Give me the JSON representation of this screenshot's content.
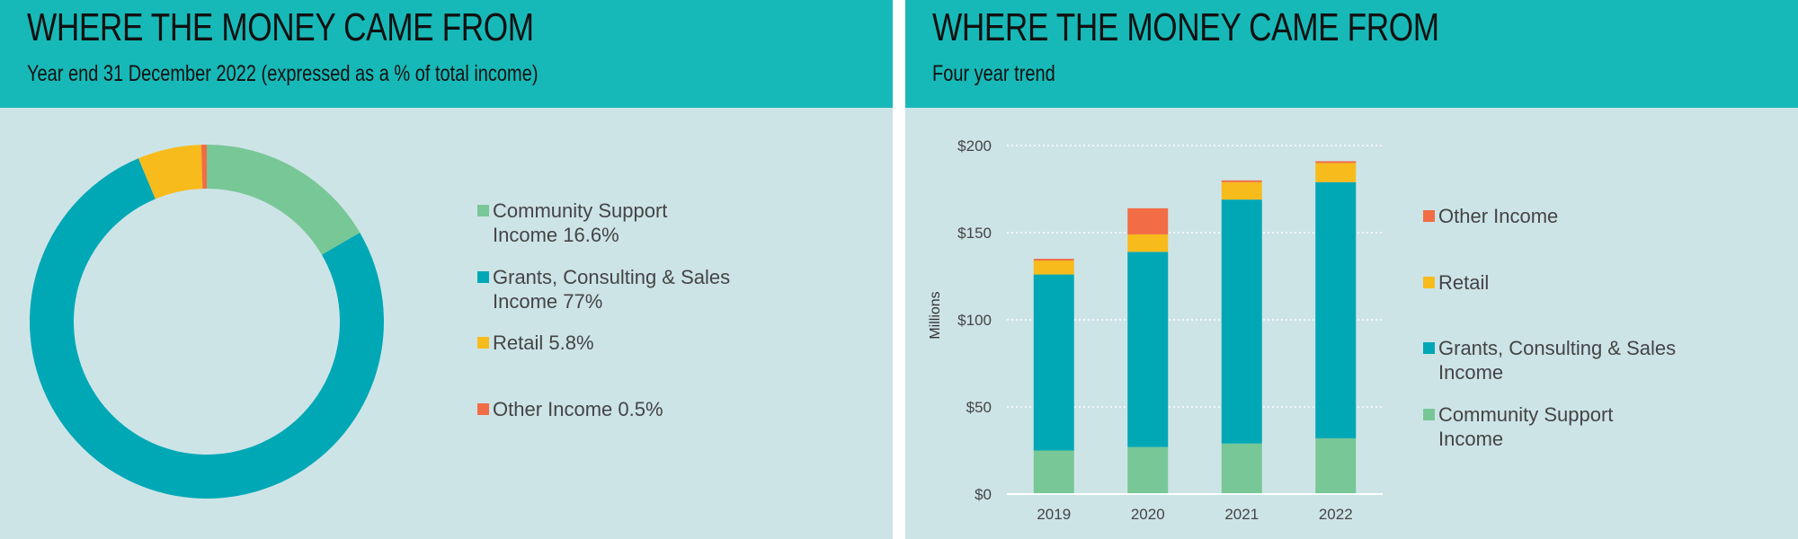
{
  "colors": {
    "community": "#78c796",
    "grants": "#00a8b5",
    "retail": "#f8bb1c",
    "other": "#f26c45",
    "header": "#17b9b8",
    "panel": "#cde4e7"
  },
  "left": {
    "title": "WHERE THE MONEY CAME FROM",
    "subtitle": "Year end 31 December 2022 (expressed as a % of total income)",
    "legend": [
      {
        "line1": "Community Support",
        "line2": "Income 16.6%",
        "color": "#78c796"
      },
      {
        "line1": "Grants, Consulting & Sales",
        "line2": "Income 77%",
        "color": "#00a8b5"
      },
      {
        "line1": "Retail 5.8%",
        "line2": "",
        "color": "#f8bb1c"
      },
      {
        "line1": "Other Income 0.5%",
        "line2": "",
        "color": "#f26c45"
      }
    ]
  },
  "right": {
    "title": "WHERE THE MONEY CAME FROM",
    "subtitle": "Four year trend",
    "legend": [
      {
        "line1": "Other Income",
        "line2": "",
        "color": "#f26c45"
      },
      {
        "line1": "Retail",
        "line2": "",
        "color": "#f8bb1c"
      },
      {
        "line1": "Grants, Consulting & Sales",
        "line2": "Income",
        "color": "#00a8b5"
      },
      {
        "line1": "Community Support",
        "line2": "Income",
        "color": "#78c796"
      }
    ]
  },
  "chart_data": [
    {
      "type": "pie",
      "donut": true,
      "title": "WHERE THE MONEY CAME FROM",
      "subtitle": "Year end 31 December 2022 (expressed as a % of total income)",
      "categories": [
        "Community Support Income",
        "Grants, Consulting & Sales Income",
        "Retail",
        "Other Income"
      ],
      "values": [
        16.6,
        77,
        5.8,
        0.5
      ],
      "colors": [
        "#78c796",
        "#00a8b5",
        "#f8bb1c",
        "#f26c45"
      ],
      "legend": "right"
    },
    {
      "type": "bar",
      "stacked": true,
      "title": "WHERE THE MONEY CAME FROM",
      "subtitle": "Four year trend",
      "categories": [
        "2019",
        "2020",
        "2021",
        "2022"
      ],
      "series": [
        {
          "name": "Community Support Income",
          "color": "#78c796",
          "values": [
            25,
            27,
            29,
            32
          ]
        },
        {
          "name": "Grants, Consulting & Sales Income",
          "color": "#00a8b5",
          "values": [
            101,
            112,
            140,
            147
          ]
        },
        {
          "name": "Retail",
          "color": "#f8bb1c",
          "values": [
            8,
            10,
            10,
            11
          ]
        },
        {
          "name": "Other Income",
          "color": "#f26c45",
          "values": [
            1,
            15,
            1,
            1
          ]
        }
      ],
      "xlabel": "",
      "ylabel": "Millions",
      "ylim": [
        0,
        200
      ],
      "yticks": [
        0,
        50,
        100,
        150,
        200
      ],
      "ytick_labels": [
        "$0",
        "$50",
        "$100",
        "$150",
        "$200"
      ],
      "grid": true,
      "legend": "right"
    }
  ]
}
